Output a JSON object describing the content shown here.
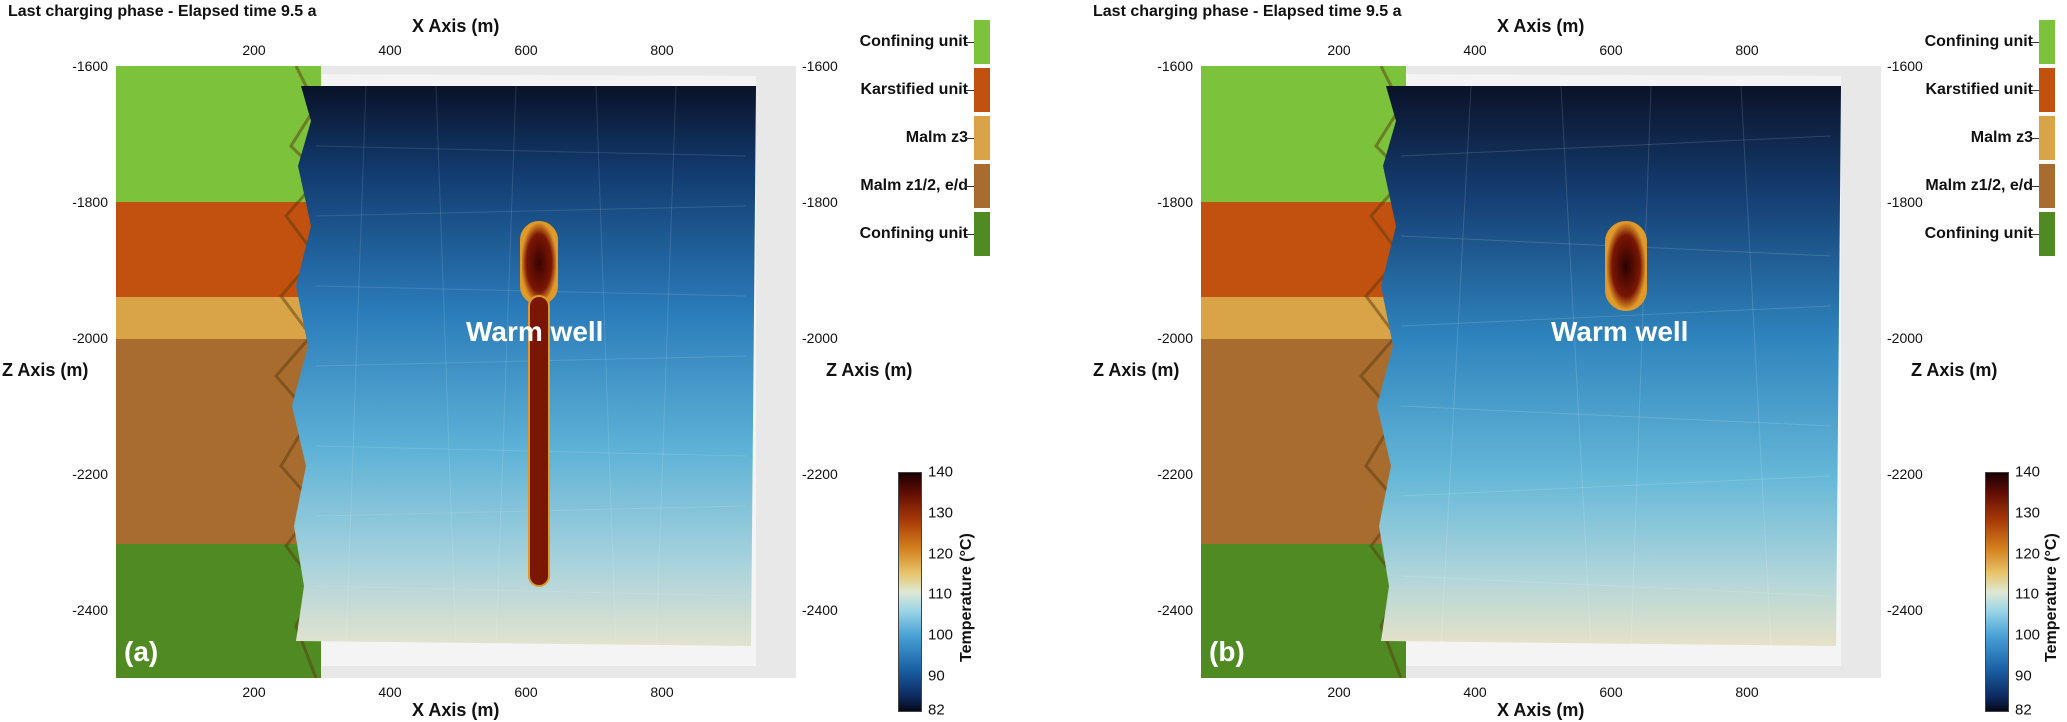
{
  "panels": [
    {
      "id": "a",
      "title": "Last charging phase - Elapsed time 9.5 a",
      "panel_label": "(a)",
      "annotation": "Warm well",
      "x_axis_title": "X Axis (m)",
      "z_axis_title": "Z Axis (m)",
      "x_ticks": [
        "200",
        "400",
        "600",
        "800"
      ],
      "z_ticks": [
        "-1600",
        "-1800",
        "-2000",
        "-2200",
        "-2400"
      ],
      "legend": [
        "Confining unit",
        "Karstified unit",
        "Malm z3",
        "Malm z1/2, e/d",
        "Confining unit"
      ],
      "colorbar_title": "Temperature (°C)",
      "colorbar_ticks": [
        "140",
        "130",
        "120",
        "110",
        "100",
        "90",
        "82"
      ]
    },
    {
      "id": "b",
      "title": "Last charging phase - Elapsed time 9.5 a",
      "panel_label": "(b)",
      "annotation": "Warm well",
      "x_axis_title": "X Axis (m)",
      "z_axis_title": "Z Axis (m)",
      "x_ticks": [
        "200",
        "400",
        "600",
        "800"
      ],
      "z_ticks": [
        "-1600",
        "-1800",
        "-2000",
        "-2200",
        "-2400"
      ],
      "legend": [
        "Confining unit",
        "Karstified unit",
        "Malm z3",
        "Malm z1/2, e/d",
        "Confining unit"
      ],
      "colorbar_title": "Temperature (°C)",
      "colorbar_ticks": [
        "140",
        "130",
        "120",
        "110",
        "100",
        "90",
        "82"
      ]
    }
  ],
  "colors": {
    "confining_unit_top": "#7cc23a",
    "karstified_unit": "#c2500e",
    "malm_z3": "#d9a447",
    "malm_z12": "#a86d2e",
    "confining_unit_bottom": "#4f8a23",
    "well_core": "#5a0a02",
    "well_rim": "#e09a2a",
    "frame": "#ececec"
  }
}
